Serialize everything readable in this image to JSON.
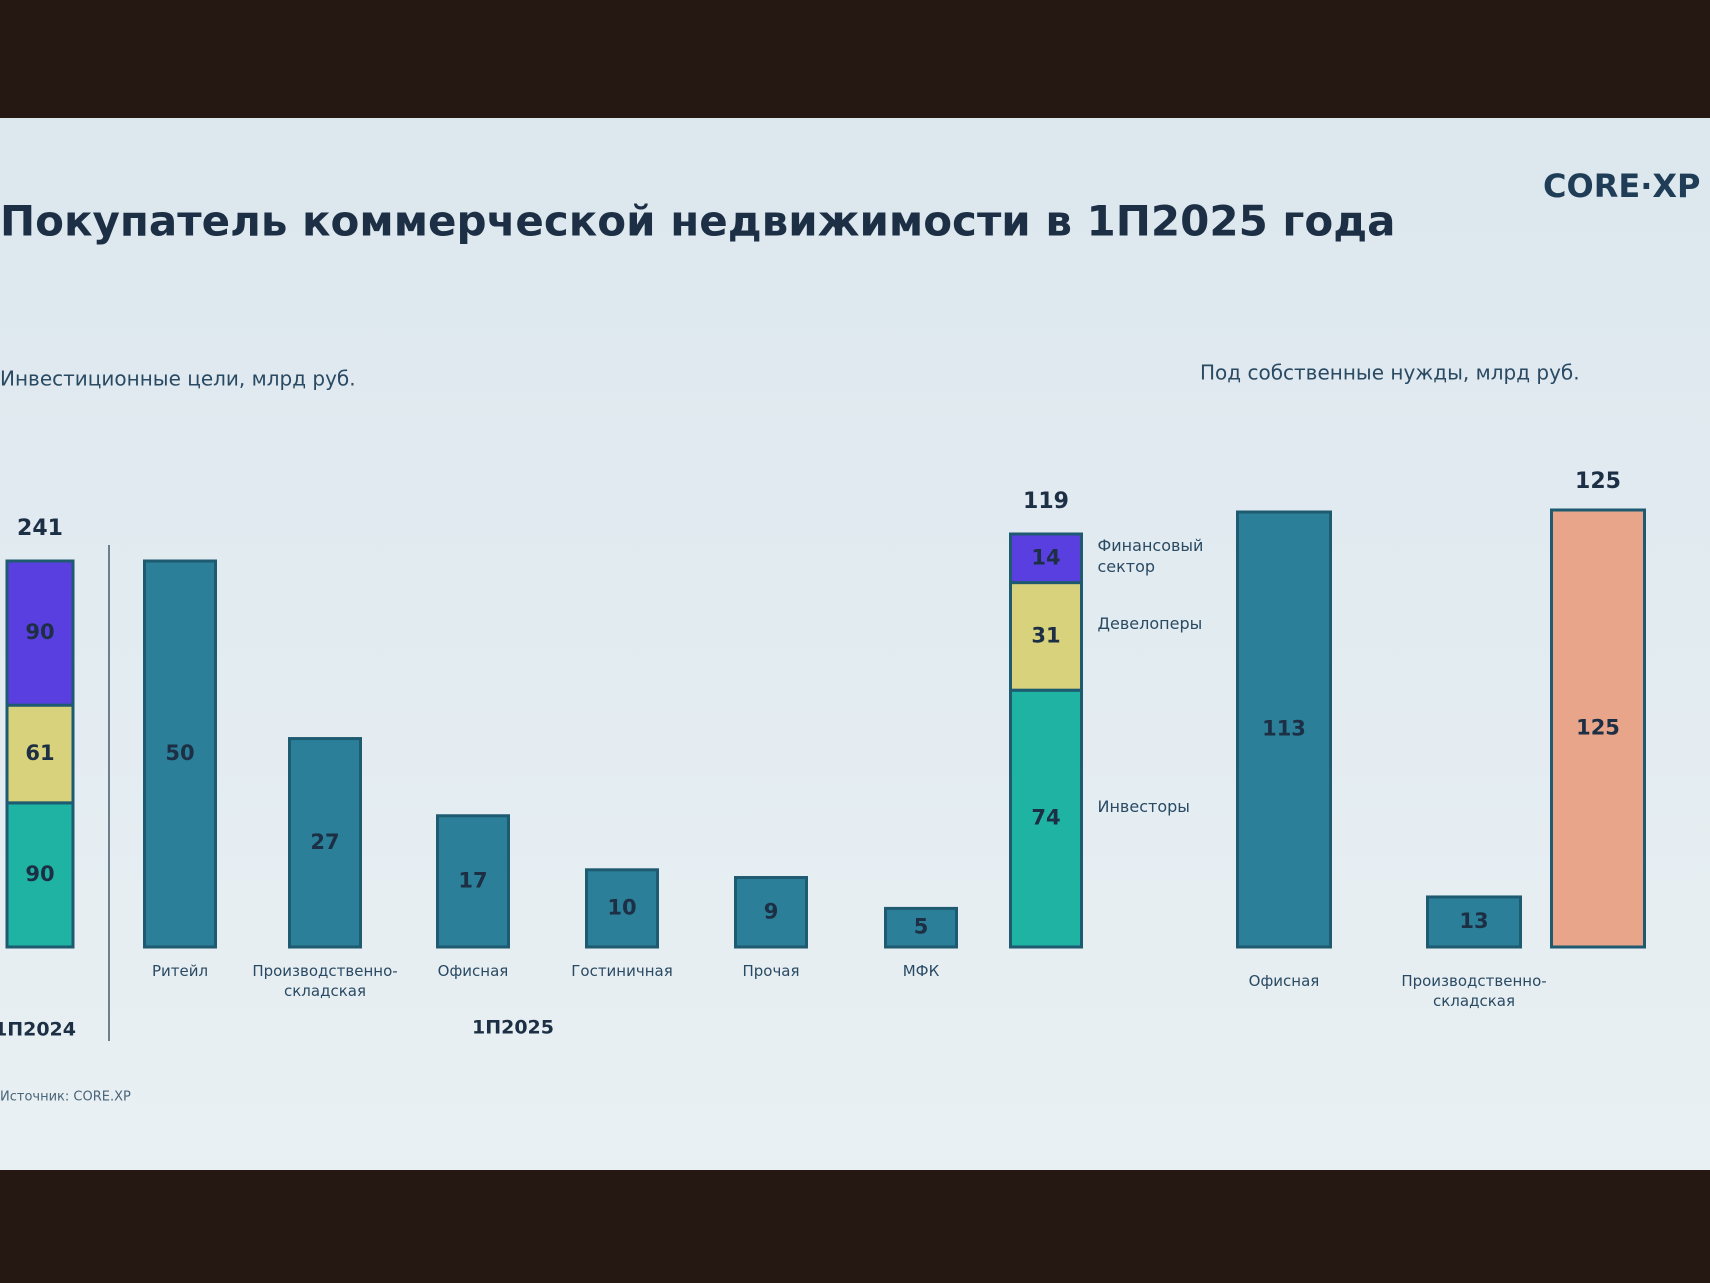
{
  "title": "Покупатель коммерческой недвижимости в 1П2025 года",
  "logo": "CORE·XP",
  "source": "Источник: CORE.XP",
  "chart_data": [
    {
      "type": "stacked_bar",
      "title": "Инвестиционные цели, млрд руб.",
      "categories": [
        "1П2024"
      ],
      "totals": [
        241
      ],
      "series": [
        {
          "color": "#1fb3a4",
          "values": [
            90
          ]
        },
        {
          "color": "#d8d27c",
          "values": [
            61
          ]
        },
        {
          "color": "#5a3fe0",
          "values": [
            90
          ]
        }
      ]
    },
    {
      "type": "bar",
      "group_label": "1П2025",
      "color": "#2b7f98",
      "categories": [
        "Ритейл",
        "Производственно-складская",
        "Офисная",
        "Гостиничная",
        "Прочая",
        "МФК"
      ],
      "values": [
        50,
        27,
        17,
        10,
        9,
        5
      ]
    },
    {
      "type": "stacked_bar",
      "categories": [
        null
      ],
      "totals": [
        119
      ],
      "series": [
        {
          "name": "Инвесторы",
          "color": "#1fb3a4",
          "values": [
            74
          ]
        },
        {
          "name": "Девелоперы",
          "color": "#d8d27c",
          "values": [
            31
          ]
        },
        {
          "name": "Финансовый сектор",
          "color": "#5a3fe0",
          "values": [
            14
          ]
        }
      ]
    },
    {
      "type": "bar",
      "title": "Под собственные нужды, млрд руб.",
      "color": "#2b7f98",
      "categories": [
        "Офисная",
        "Производственно-складская"
      ],
      "values": [
        113,
        13
      ]
    },
    {
      "type": "bar",
      "color": "#e9a58a",
      "categories": [
        null
      ],
      "values": [
        125
      ],
      "totals": [
        125
      ]
    }
  ]
}
